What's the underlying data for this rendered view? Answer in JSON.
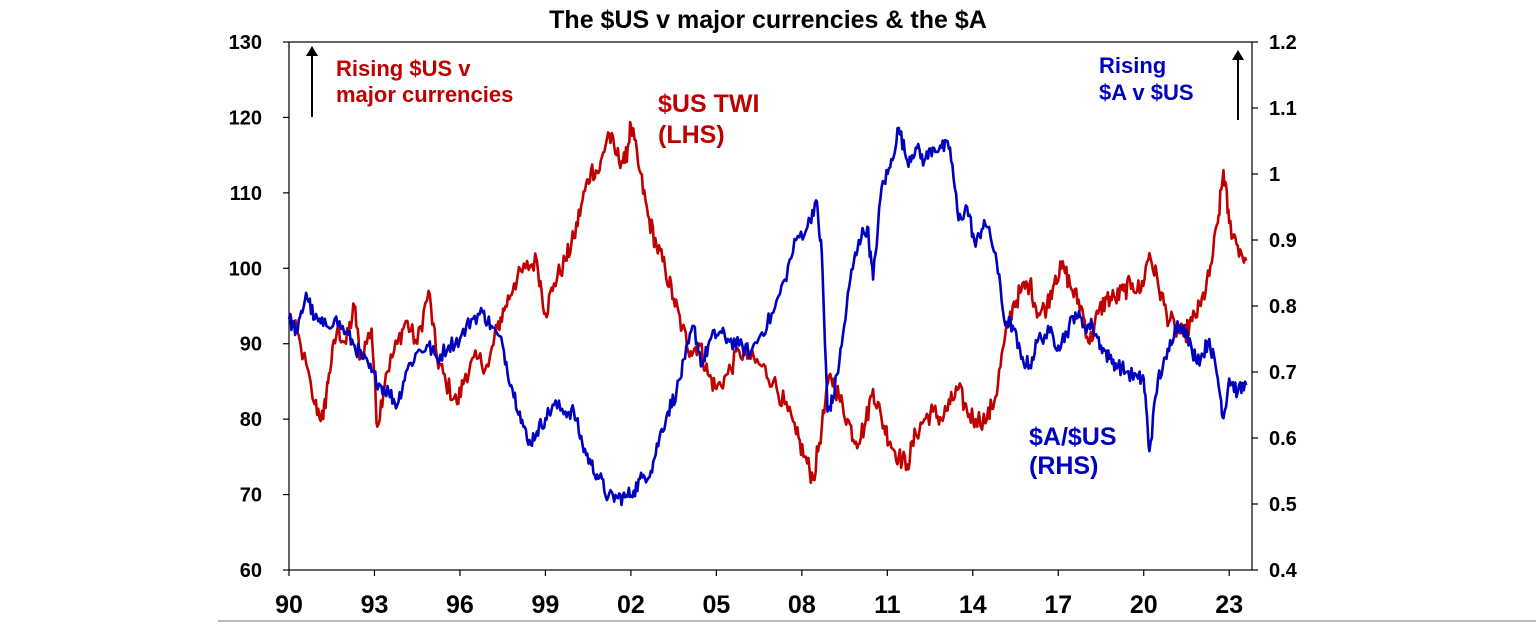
{
  "chart_data": {
    "type": "line",
    "title": "The $US v major currencies & the $A",
    "x_tick_labels": [
      "90",
      "93",
      "96",
      "99",
      "02",
      "05",
      "08",
      "11",
      "14",
      "17",
      "20",
      "23"
    ],
    "x_tick_years": [
      1990,
      1993,
      1996,
      1999,
      2002,
      2005,
      2008,
      2011,
      2014,
      2017,
      2020,
      2023
    ],
    "x_range": [
      1990,
      2023.8
    ],
    "y_left": {
      "range": [
        60,
        130
      ],
      "ticks": [
        60,
        70,
        80,
        90,
        100,
        110,
        120,
        130
      ],
      "tick_labels": [
        "60",
        "70",
        "80",
        "90",
        "100",
        "110",
        "120",
        "130"
      ]
    },
    "y_right": {
      "range": [
        0.4,
        1.2
      ],
      "ticks": [
        0.4,
        0.5,
        0.6,
        0.7,
        0.8,
        0.9,
        1.0,
        1.1,
        1.2
      ],
      "tick_labels": [
        "0.4",
        "0.5",
        "0.6",
        "0.7",
        "0.8",
        "0.9",
        "1",
        "1.1",
        "1.2"
      ]
    },
    "series": [
      {
        "name": "$US TWI (LHS)",
        "axis": "left",
        "color": "#C00000",
        "points": [
          [
            1990.0,
            94
          ],
          [
            1990.4,
            90
          ],
          [
            1990.9,
            82
          ],
          [
            1991.2,
            80
          ],
          [
            1991.4,
            86
          ],
          [
            1991.7,
            92
          ],
          [
            1992.0,
            90
          ],
          [
            1992.3,
            95
          ],
          [
            1992.5,
            88
          ],
          [
            1992.9,
            92
          ],
          [
            1993.1,
            79
          ],
          [
            1993.4,
            86
          ],
          [
            1993.8,
            90
          ],
          [
            1994.1,
            93
          ],
          [
            1994.5,
            90
          ],
          [
            1994.9,
            97
          ],
          [
            1995.2,
            88
          ],
          [
            1995.5,
            85
          ],
          [
            1995.9,
            82
          ],
          [
            1996.2,
            86
          ],
          [
            1996.6,
            88
          ],
          [
            1997.0,
            87
          ],
          [
            1997.3,
            92
          ],
          [
            1997.6,
            95
          ],
          [
            1997.9,
            98
          ],
          [
            1998.3,
            100
          ],
          [
            1998.7,
            101
          ],
          [
            1999.0,
            94
          ],
          [
            1999.3,
            98
          ],
          [
            1999.7,
            101
          ],
          [
            2000.0,
            104
          ],
          [
            2000.3,
            109
          ],
          [
            2000.6,
            113
          ],
          [
            2000.9,
            113
          ],
          [
            2001.2,
            118
          ],
          [
            2001.5,
            115
          ],
          [
            2001.8,
            114
          ],
          [
            2002.0,
            119
          ],
          [
            2002.3,
            113
          ],
          [
            2002.6,
            107
          ],
          [
            2002.9,
            103
          ],
          [
            2003.2,
            100
          ],
          [
            2003.5,
            96
          ],
          [
            2003.8,
            92
          ],
          [
            2004.1,
            89
          ],
          [
            2004.4,
            90
          ],
          [
            2004.7,
            86
          ],
          [
            2005.0,
            84
          ],
          [
            2005.4,
            86
          ],
          [
            2005.8,
            89
          ],
          [
            2006.2,
            88
          ],
          [
            2006.6,
            87
          ],
          [
            2007.0,
            85
          ],
          [
            2007.4,
            82
          ],
          [
            2007.8,
            78
          ],
          [
            2008.1,
            75
          ],
          [
            2008.4,
            72
          ],
          [
            2008.7,
            79
          ],
          [
            2009.0,
            86
          ],
          [
            2009.3,
            83
          ],
          [
            2009.6,
            80
          ],
          [
            2009.9,
            77
          ],
          [
            2010.2,
            79
          ],
          [
            2010.5,
            84
          ],
          [
            2010.8,
            80
          ],
          [
            2011.1,
            77
          ],
          [
            2011.4,
            75
          ],
          [
            2011.7,
            74
          ],
          [
            2012.0,
            78
          ],
          [
            2012.3,
            80
          ],
          [
            2012.6,
            81
          ],
          [
            2012.9,
            80
          ],
          [
            2013.2,
            82
          ],
          [
            2013.5,
            84
          ],
          [
            2013.8,
            81
          ],
          [
            2014.1,
            80
          ],
          [
            2014.5,
            80
          ],
          [
            2014.8,
            83
          ],
          [
            2015.1,
            90
          ],
          [
            2015.4,
            95
          ],
          [
            2015.7,
            97
          ],
          [
            2016.0,
            98
          ],
          [
            2016.3,
            94
          ],
          [
            2016.6,
            95
          ],
          [
            2016.9,
            99
          ],
          [
            2017.2,
            100
          ],
          [
            2017.5,
            97
          ],
          [
            2017.8,
            95
          ],
          [
            2018.1,
            90
          ],
          [
            2018.4,
            94
          ],
          [
            2018.7,
            96
          ],
          [
            2019.0,
            96
          ],
          [
            2019.3,
            97
          ],
          [
            2019.6,
            98
          ],
          [
            2019.9,
            97
          ],
          [
            2020.2,
            102
          ],
          [
            2020.5,
            98
          ],
          [
            2020.8,
            94
          ],
          [
            2021.1,
            92
          ],
          [
            2021.4,
            91
          ],
          [
            2021.7,
            93
          ],
          [
            2022.0,
            95
          ],
          [
            2022.3,
            99
          ],
          [
            2022.6,
            106
          ],
          [
            2022.8,
            113
          ],
          [
            2023.0,
            106
          ],
          [
            2023.3,
            103
          ],
          [
            2023.6,
            101
          ]
        ]
      },
      {
        "name": "$A/$US (RHS)",
        "axis": "right",
        "color": "#0000C0",
        "points": [
          [
            1990.0,
            0.78
          ],
          [
            1990.3,
            0.76
          ],
          [
            1990.6,
            0.82
          ],
          [
            1990.9,
            0.78
          ],
          [
            1991.2,
            0.77
          ],
          [
            1991.6,
            0.78
          ],
          [
            1992.0,
            0.76
          ],
          [
            1992.3,
            0.74
          ],
          [
            1992.6,
            0.72
          ],
          [
            1992.9,
            0.7
          ],
          [
            1993.2,
            0.68
          ],
          [
            1993.5,
            0.67
          ],
          [
            1993.8,
            0.65
          ],
          [
            1994.1,
            0.7
          ],
          [
            1994.5,
            0.73
          ],
          [
            1994.9,
            0.74
          ],
          [
            1995.2,
            0.72
          ],
          [
            1995.6,
            0.74
          ],
          [
            1996.0,
            0.75
          ],
          [
            1996.4,
            0.78
          ],
          [
            1996.8,
            0.79
          ],
          [
            1997.1,
            0.77
          ],
          [
            1997.5,
            0.74
          ],
          [
            1997.8,
            0.68
          ],
          [
            1998.1,
            0.64
          ],
          [
            1998.4,
            0.59
          ],
          [
            1998.7,
            0.61
          ],
          [
            1999.0,
            0.63
          ],
          [
            1999.3,
            0.65
          ],
          [
            1999.7,
            0.64
          ],
          [
            2000.0,
            0.64
          ],
          [
            2000.3,
            0.59
          ],
          [
            2000.6,
            0.56
          ],
          [
            2000.9,
            0.54
          ],
          [
            2001.2,
            0.51
          ],
          [
            2001.5,
            0.51
          ],
          [
            2001.8,
            0.51
          ],
          [
            2002.1,
            0.52
          ],
          [
            2002.4,
            0.54
          ],
          [
            2002.7,
            0.55
          ],
          [
            2003.0,
            0.6
          ],
          [
            2003.3,
            0.64
          ],
          [
            2003.6,
            0.67
          ],
          [
            2003.9,
            0.72
          ],
          [
            2004.2,
            0.77
          ],
          [
            2004.5,
            0.71
          ],
          [
            2004.8,
            0.75
          ],
          [
            2005.1,
            0.76
          ],
          [
            2005.4,
            0.75
          ],
          [
            2005.8,
            0.74
          ],
          [
            2006.2,
            0.73
          ],
          [
            2006.6,
            0.76
          ],
          [
            2007.0,
            0.79
          ],
          [
            2007.4,
            0.84
          ],
          [
            2007.8,
            0.9
          ],
          [
            2008.2,
            0.92
          ],
          [
            2008.5,
            0.96
          ],
          [
            2008.7,
            0.88
          ],
          [
            2008.9,
            0.64
          ],
          [
            2009.1,
            0.66
          ],
          [
            2009.4,
            0.74
          ],
          [
            2009.7,
            0.84
          ],
          [
            2010.0,
            0.9
          ],
          [
            2010.3,
            0.92
          ],
          [
            2010.5,
            0.84
          ],
          [
            2010.8,
            0.98
          ],
          [
            2011.1,
            1.01
          ],
          [
            2011.4,
            1.07
          ],
          [
            2011.7,
            1.02
          ],
          [
            2012.0,
            1.04
          ],
          [
            2012.3,
            1.02
          ],
          [
            2012.6,
            1.04
          ],
          [
            2012.9,
            1.04
          ],
          [
            2013.2,
            1.04
          ],
          [
            2013.5,
            0.93
          ],
          [
            2013.8,
            0.95
          ],
          [
            2014.1,
            0.89
          ],
          [
            2014.4,
            0.93
          ],
          [
            2014.8,
            0.88
          ],
          [
            2015.1,
            0.78
          ],
          [
            2015.4,
            0.77
          ],
          [
            2015.7,
            0.72
          ],
          [
            2016.0,
            0.71
          ],
          [
            2016.3,
            0.75
          ],
          [
            2016.7,
            0.76
          ],
          [
            2017.0,
            0.74
          ],
          [
            2017.3,
            0.76
          ],
          [
            2017.6,
            0.79
          ],
          [
            2017.9,
            0.77
          ],
          [
            2018.2,
            0.77
          ],
          [
            2018.5,
            0.74
          ],
          [
            2018.8,
            0.72
          ],
          [
            2019.1,
            0.71
          ],
          [
            2019.4,
            0.7
          ],
          [
            2019.8,
            0.69
          ],
          [
            2020.0,
            0.69
          ],
          [
            2020.2,
            0.58
          ],
          [
            2020.5,
            0.69
          ],
          [
            2020.8,
            0.72
          ],
          [
            2021.1,
            0.77
          ],
          [
            2021.4,
            0.77
          ],
          [
            2021.7,
            0.73
          ],
          [
            2022.0,
            0.72
          ],
          [
            2022.3,
            0.75
          ],
          [
            2022.6,
            0.69
          ],
          [
            2022.8,
            0.63
          ],
          [
            2023.0,
            0.69
          ],
          [
            2023.3,
            0.67
          ],
          [
            2023.6,
            0.68
          ]
        ]
      }
    ],
    "annotations": {
      "left_arrow_text": [
        "Rising $US v",
        "major currencies"
      ],
      "right_arrow_text": [
        "Rising",
        "$A v $US"
      ],
      "twi_label": [
        "$US TWI",
        "(LHS)"
      ],
      "aud_label": [
        "$A/$US",
        "(RHS)"
      ]
    }
  }
}
